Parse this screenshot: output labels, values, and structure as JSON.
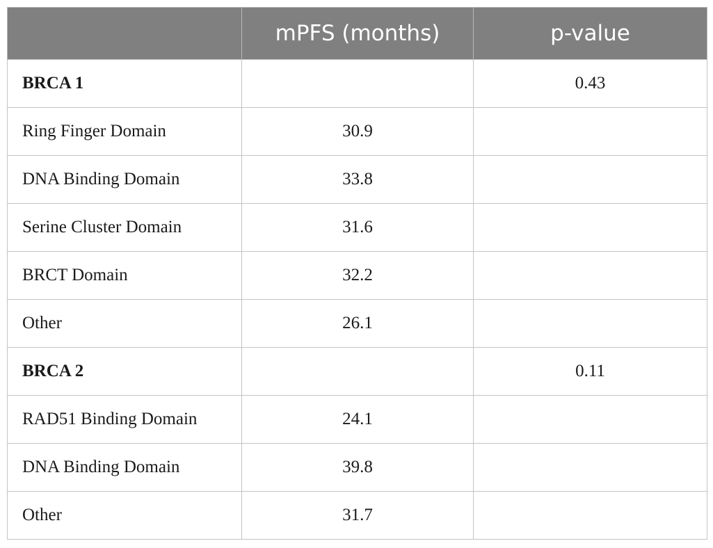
{
  "table": {
    "headers": [
      "",
      "mPFS (months)",
      "p-value"
    ],
    "rows": [
      {
        "label": "BRCA 1",
        "mpfs": "",
        "pvalue": "0.43",
        "group": true
      },
      {
        "label": "Ring Finger Domain",
        "mpfs": "30.9",
        "pvalue": "",
        "group": false
      },
      {
        "label": "DNA Binding Domain",
        "mpfs": "33.8",
        "pvalue": "",
        "group": false
      },
      {
        "label": "Serine Cluster Domain",
        "mpfs": "31.6",
        "pvalue": "",
        "group": false
      },
      {
        "label": "BRCT Domain",
        "mpfs": "32.2",
        "pvalue": "",
        "group": false
      },
      {
        "label": "Other",
        "mpfs": "26.1",
        "pvalue": "",
        "group": false
      },
      {
        "label": "BRCA 2",
        "mpfs": "",
        "pvalue": "0.11",
        "group": true
      },
      {
        "label": "RAD51 Binding Domain",
        "mpfs": "24.1",
        "pvalue": "",
        "group": false
      },
      {
        "label": "DNA Binding Domain",
        "mpfs": "39.8",
        "pvalue": "",
        "group": false
      },
      {
        "label": "Other",
        "mpfs": "31.7",
        "pvalue": "",
        "group": false
      }
    ]
  },
  "colors": {
    "header_background": "#808080",
    "header_text": "#ffffff",
    "grid_line": "#c4c4c4"
  }
}
